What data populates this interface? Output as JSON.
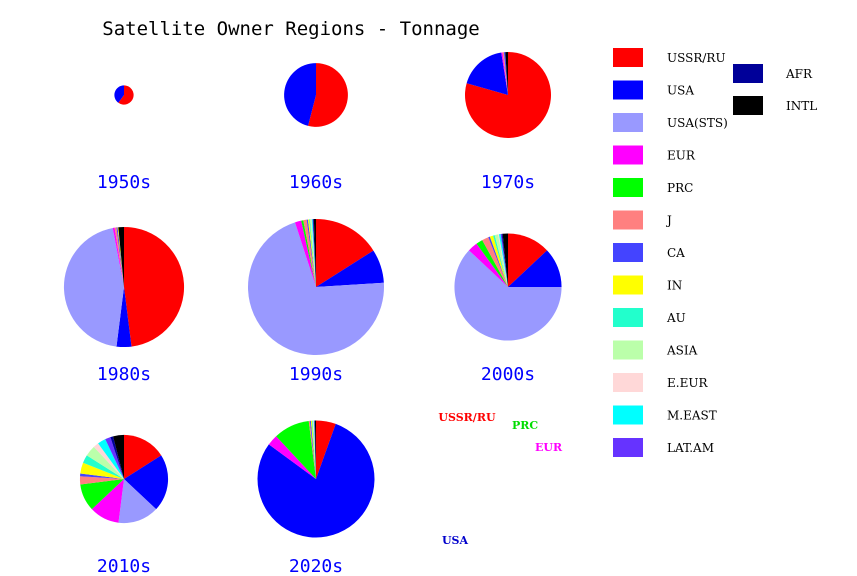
{
  "chart_data": {
    "type": "pie",
    "title": "Satellite Owner Regions - Tonnage",
    "categories": [
      "USSR/RU",
      "USA",
      "USA(STS)",
      "EUR",
      "PRC",
      "J",
      "CA",
      "IN",
      "AU",
      "ASIA",
      "E.EUR",
      "M.EAST",
      "LAT.AM",
      "AFR",
      "INTL"
    ],
    "colors": [
      "#ff0000",
      "#0000ff",
      "#9999ff",
      "#ff00ff",
      "#00ff00",
      "#ff8080",
      "#4444ff",
      "#ffff00",
      "#22ffcc",
      "#bbffaa",
      "#ffd8d8",
      "#00ffff",
      "#6633ff",
      "#000099",
      "#000000"
    ],
    "legend_placement": "right",
    "decades": [
      {
        "label": "1950s",
        "relative_size": 0.02,
        "values": [
          60,
          40,
          0,
          0,
          0,
          0,
          0,
          0,
          0,
          0,
          0,
          0,
          0,
          0,
          0
        ]
      },
      {
        "label": "1960s",
        "relative_size": 0.22,
        "values": [
          54,
          46,
          0,
          0,
          0,
          0,
          0,
          0,
          0,
          0,
          0,
          0,
          0,
          0,
          0
        ]
      },
      {
        "label": "1970s",
        "relative_size": 0.4,
        "values": [
          79,
          18,
          0,
          0.5,
          0,
          0.5,
          0.5,
          0,
          0,
          0,
          0,
          0,
          0,
          0,
          1
        ]
      },
      {
        "label": "1980s",
        "relative_size": 0.78,
        "values": [
          48,
          4,
          45,
          0.5,
          0,
          0.5,
          0.3,
          0.2,
          0,
          0,
          0,
          0,
          0,
          0,
          1.5
        ]
      },
      {
        "label": "1990s",
        "relative_size": 1.0,
        "values": [
          16,
          8,
          71,
          1.5,
          0.5,
          0.8,
          0.3,
          0.3,
          0.2,
          0.3,
          0.1,
          0.2,
          0.1,
          0.2,
          0.5
        ]
      },
      {
        "label": "2000s",
        "relative_size": 0.62,
        "values": [
          13,
          12,
          62,
          3,
          2,
          2,
          0.5,
          1,
          0.5,
          1,
          0.3,
          0.5,
          0.3,
          0.3,
          1.6
        ]
      },
      {
        "label": "2010s",
        "relative_size": 0.42,
        "values": [
          16,
          21,
          15,
          11,
          10,
          3,
          1,
          4,
          3,
          4,
          2,
          3,
          2,
          1,
          4
        ]
      },
      {
        "label": "2020s",
        "relative_size": 0.74,
        "values": [
          5.5,
          80,
          0,
          3,
          10,
          0.3,
          0.3,
          0.3,
          0.2,
          0.2,
          0.1,
          0.1,
          0.1,
          0.1,
          0.3
        ]
      }
    ],
    "annotations": [
      {
        "text": "USSR/RU",
        "color": "#ff0000",
        "decade": "2020s"
      },
      {
        "text": "PRC",
        "color": "#00dd00",
        "decade": "2020s"
      },
      {
        "text": "EUR",
        "color": "#ff00ff",
        "decade": "2020s"
      },
      {
        "text": "USA",
        "color": "#0000cc",
        "decade": "2020s"
      }
    ]
  }
}
